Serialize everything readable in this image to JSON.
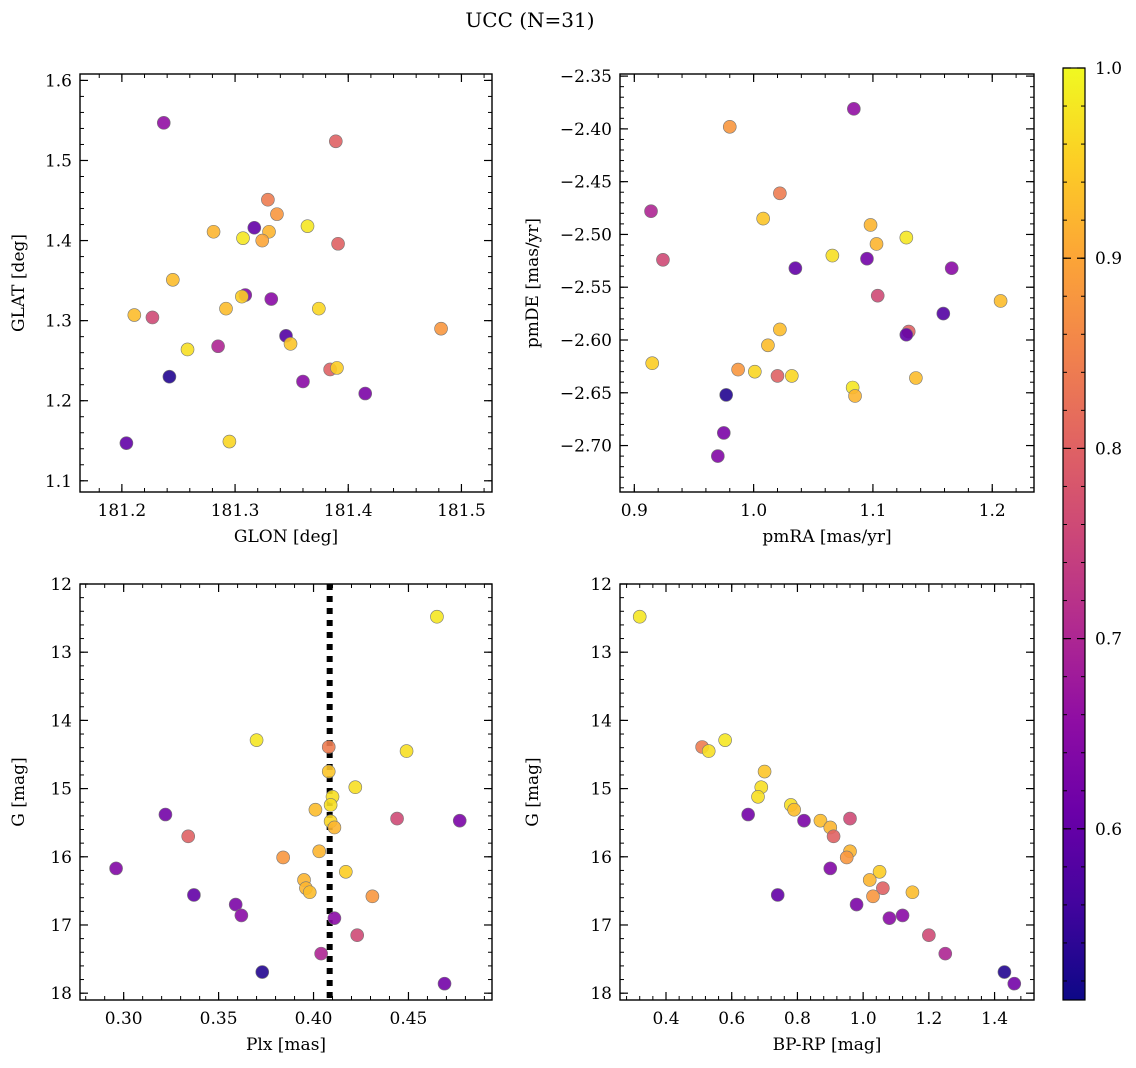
{
  "figure": {
    "title": "UCC (N=31)"
  },
  "colorbar": {
    "min": 0.51,
    "max": 1.0,
    "ticks": [
      0.6,
      0.7,
      0.8,
      0.9,
      1.0
    ],
    "tick_labels": [
      "0.6",
      "0.7",
      "0.8",
      "0.9",
      "1.0"
    ],
    "colormap": "plasma"
  },
  "chart_data": [
    {
      "type": "scatter",
      "id": "glon-glat",
      "xlabel": "GLON [deg]",
      "ylabel": "GLAT [deg]",
      "xlim": [
        181.163,
        181.527
      ],
      "ylim": [
        1.086,
        1.608
      ],
      "xticks": [
        181.2,
        181.3,
        181.4,
        181.5
      ],
      "xtick_labels": [
        "181.2",
        "181.3",
        "181.4",
        "181.5"
      ],
      "yticks": [
        1.1,
        1.2,
        1.3,
        1.4,
        1.5,
        1.6
      ],
      "ytick_labels": [
        "1.1",
        "1.2",
        "1.3",
        "1.4",
        "1.5",
        "1.6"
      ],
      "y_inverted": false,
      "points": [
        {
          "x": 181.237,
          "y": 1.547,
          "c": 0.66
        },
        {
          "x": 181.389,
          "y": 1.524,
          "c": 0.8
        },
        {
          "x": 181.329,
          "y": 1.451,
          "c": 0.84
        },
        {
          "x": 181.337,
          "y": 1.433,
          "c": 0.88
        },
        {
          "x": 181.317,
          "y": 1.416,
          "c": 0.6
        },
        {
          "x": 181.364,
          "y": 1.418,
          "c": 0.98
        },
        {
          "x": 181.281,
          "y": 1.411,
          "c": 0.92
        },
        {
          "x": 181.33,
          "y": 1.411,
          "c": 0.92
        },
        {
          "x": 181.307,
          "y": 1.403,
          "c": 0.98
        },
        {
          "x": 181.324,
          "y": 1.4,
          "c": 0.9
        },
        {
          "x": 181.391,
          "y": 1.396,
          "c": 0.8
        },
        {
          "x": 181.245,
          "y": 1.351,
          "c": 0.93
        },
        {
          "x": 181.309,
          "y": 1.332,
          "c": 0.64
        },
        {
          "x": 181.306,
          "y": 1.33,
          "c": 0.95
        },
        {
          "x": 181.332,
          "y": 1.327,
          "c": 0.65
        },
        {
          "x": 181.292,
          "y": 1.315,
          "c": 0.93
        },
        {
          "x": 181.374,
          "y": 1.315,
          "c": 0.96
        },
        {
          "x": 181.211,
          "y": 1.307,
          "c": 0.93
        },
        {
          "x": 181.227,
          "y": 1.304,
          "c": 0.76
        },
        {
          "x": 181.482,
          "y": 1.29,
          "c": 0.88
        },
        {
          "x": 181.345,
          "y": 1.281,
          "c": 0.58
        },
        {
          "x": 181.349,
          "y": 1.271,
          "c": 0.94
        },
        {
          "x": 181.285,
          "y": 1.268,
          "c": 0.7
        },
        {
          "x": 181.258,
          "y": 1.264,
          "c": 0.97
        },
        {
          "x": 181.384,
          "y": 1.239,
          "c": 0.8
        },
        {
          "x": 181.39,
          "y": 1.241,
          "c": 0.95
        },
        {
          "x": 181.242,
          "y": 1.23,
          "c": 0.53
        },
        {
          "x": 181.36,
          "y": 1.224,
          "c": 0.65
        },
        {
          "x": 181.415,
          "y": 1.209,
          "c": 0.63
        },
        {
          "x": 181.295,
          "y": 1.149,
          "c": 0.96
        },
        {
          "x": 181.204,
          "y": 1.147,
          "c": 0.6
        }
      ]
    },
    {
      "type": "scatter",
      "id": "pmra-pmde",
      "xlabel": "pmRA [mas/yr]",
      "ylabel": "pmDE [mas/yr]",
      "xlim": [
        0.888,
        1.235
      ],
      "ylim": [
        -2.744,
        -2.348
      ],
      "xticks": [
        0.9,
        1.0,
        1.1,
        1.2
      ],
      "xtick_labels": [
        "0.9",
        "1.0",
        "1.1",
        "1.2"
      ],
      "yticks": [
        -2.7,
        -2.65,
        -2.6,
        -2.55,
        -2.5,
        -2.45,
        -2.4,
        -2.35
      ],
      "ytick_labels": [
        "−2.70",
        "−2.65",
        "−2.60",
        "−2.55",
        "−2.50",
        "−2.45",
        "−2.40",
        "−2.35"
      ],
      "y_inverted": false,
      "points": [
        {
          "x": 1.084,
          "y": -2.381,
          "c": 0.66
        },
        {
          "x": 0.98,
          "y": -2.398,
          "c": 0.88
        },
        {
          "x": 1.022,
          "y": -2.461,
          "c": 0.84
        },
        {
          "x": 0.914,
          "y": -2.478,
          "c": 0.7
        },
        {
          "x": 1.008,
          "y": -2.485,
          "c": 0.94
        },
        {
          "x": 1.098,
          "y": -2.491,
          "c": 0.92
        },
        {
          "x": 1.128,
          "y": -2.503,
          "c": 0.98
        },
        {
          "x": 1.103,
          "y": -2.509,
          "c": 0.92
        },
        {
          "x": 1.066,
          "y": -2.52,
          "c": 0.97
        },
        {
          "x": 0.924,
          "y": -2.524,
          "c": 0.76
        },
        {
          "x": 1.095,
          "y": -2.523,
          "c": 0.62
        },
        {
          "x": 1.035,
          "y": -2.532,
          "c": 0.6
        },
        {
          "x": 1.166,
          "y": -2.532,
          "c": 0.65
        },
        {
          "x": 1.104,
          "y": -2.558,
          "c": 0.76
        },
        {
          "x": 1.207,
          "y": -2.563,
          "c": 0.93
        },
        {
          "x": 1.159,
          "y": -2.575,
          "c": 0.58
        },
        {
          "x": 1.022,
          "y": -2.59,
          "c": 0.93
        },
        {
          "x": 1.13,
          "y": -2.592,
          "c": 0.8
        },
        {
          "x": 1.128,
          "y": -2.595,
          "c": 0.6
        },
        {
          "x": 1.012,
          "y": -2.605,
          "c": 0.93
        },
        {
          "x": 0.915,
          "y": -2.622,
          "c": 0.95
        },
        {
          "x": 0.987,
          "y": -2.628,
          "c": 0.88
        },
        {
          "x": 1.001,
          "y": -2.63,
          "c": 0.96
        },
        {
          "x": 1.02,
          "y": -2.634,
          "c": 0.8
        },
        {
          "x": 1.032,
          "y": -2.634,
          "c": 0.96
        },
        {
          "x": 1.136,
          "y": -2.636,
          "c": 0.93
        },
        {
          "x": 1.083,
          "y": -2.645,
          "c": 0.98
        },
        {
          "x": 0.977,
          "y": -2.652,
          "c": 0.53
        },
        {
          "x": 1.085,
          "y": -2.653,
          "c": 0.92
        },
        {
          "x": 0.975,
          "y": -2.688,
          "c": 0.63
        },
        {
          "x": 0.97,
          "y": -2.71,
          "c": 0.64
        }
      ]
    },
    {
      "type": "scatter",
      "id": "plx-g",
      "xlabel": "Plx [mas]",
      "ylabel": "G [mag]",
      "xlim": [
        0.277,
        0.494
      ],
      "ylim": [
        12.0,
        18.1
      ],
      "xticks": [
        0.3,
        0.35,
        0.4,
        0.45
      ],
      "xtick_labels": [
        "0.30",
        "0.35",
        "0.40",
        "0.45"
      ],
      "yticks": [
        12,
        13,
        14,
        15,
        16,
        17,
        18
      ],
      "ytick_labels": [
        "12",
        "13",
        "14",
        "15",
        "16",
        "17",
        "18"
      ],
      "y_inverted": true,
      "vline": {
        "x": 0.4085,
        "style": "dotted"
      },
      "points": [
        {
          "x": 0.465,
          "y": 12.48,
          "c": 0.98
        },
        {
          "x": 0.37,
          "y": 14.29,
          "c": 0.98
        },
        {
          "x": 0.408,
          "y": 14.39,
          "c": 0.84
        },
        {
          "x": 0.449,
          "y": 14.45,
          "c": 0.97
        },
        {
          "x": 0.408,
          "y": 14.75,
          "c": 0.94
        },
        {
          "x": 0.422,
          "y": 14.98,
          "c": 0.97
        },
        {
          "x": 0.41,
          "y": 15.12,
          "c": 0.97
        },
        {
          "x": 0.409,
          "y": 15.24,
          "c": 0.97
        },
        {
          "x": 0.401,
          "y": 15.31,
          "c": 0.93
        },
        {
          "x": 0.322,
          "y": 15.38,
          "c": 0.62
        },
        {
          "x": 0.444,
          "y": 15.44,
          "c": 0.76
        },
        {
          "x": 0.477,
          "y": 15.47,
          "c": 0.63
        },
        {
          "x": 0.409,
          "y": 15.48,
          "c": 0.96
        },
        {
          "x": 0.411,
          "y": 15.57,
          "c": 0.92
        },
        {
          "x": 0.334,
          "y": 15.7,
          "c": 0.8
        },
        {
          "x": 0.403,
          "y": 15.92,
          "c": 0.92
        },
        {
          "x": 0.384,
          "y": 16.01,
          "c": 0.88
        },
        {
          "x": 0.296,
          "y": 16.17,
          "c": 0.64
        },
        {
          "x": 0.417,
          "y": 16.22,
          "c": 0.95
        },
        {
          "x": 0.395,
          "y": 16.34,
          "c": 0.92
        },
        {
          "x": 0.396,
          "y": 16.46,
          "c": 0.92
        },
        {
          "x": 0.398,
          "y": 16.52,
          "c": 0.93
        },
        {
          "x": 0.337,
          "y": 16.56,
          "c": 0.6
        },
        {
          "x": 0.431,
          "y": 16.58,
          "c": 0.88
        },
        {
          "x": 0.359,
          "y": 16.7,
          "c": 0.63
        },
        {
          "x": 0.362,
          "y": 16.86,
          "c": 0.65
        },
        {
          "x": 0.411,
          "y": 16.9,
          "c": 0.65
        },
        {
          "x": 0.423,
          "y": 17.15,
          "c": 0.76
        },
        {
          "x": 0.404,
          "y": 17.42,
          "c": 0.7
        },
        {
          "x": 0.373,
          "y": 17.69,
          "c": 0.53
        },
        {
          "x": 0.469,
          "y": 17.86,
          "c": 0.62
        }
      ]
    },
    {
      "type": "scatter",
      "id": "bprp-g",
      "xlabel": "BP-RP [mag]",
      "ylabel": "G [mag]",
      "xlim": [
        0.26,
        1.52
      ],
      "ylim": [
        12.0,
        18.1
      ],
      "xticks": [
        0.4,
        0.6,
        0.8,
        1.0,
        1.2,
        1.4
      ],
      "xtick_labels": [
        "0.4",
        "0.6",
        "0.8",
        "1.0",
        "1.2",
        "1.4"
      ],
      "yticks": [
        12,
        13,
        14,
        15,
        16,
        17,
        18
      ],
      "ytick_labels": [
        "12",
        "13",
        "14",
        "15",
        "16",
        "17",
        "18"
      ],
      "y_inverted": true,
      "points": [
        {
          "x": 0.32,
          "y": 12.48,
          "c": 0.98
        },
        {
          "x": 0.58,
          "y": 14.29,
          "c": 0.98
        },
        {
          "x": 0.51,
          "y": 14.39,
          "c": 0.84
        },
        {
          "x": 0.53,
          "y": 14.45,
          "c": 0.97
        },
        {
          "x": 0.7,
          "y": 14.75,
          "c": 0.94
        },
        {
          "x": 0.69,
          "y": 14.98,
          "c": 0.97
        },
        {
          "x": 0.68,
          "y": 15.12,
          "c": 0.97
        },
        {
          "x": 0.78,
          "y": 15.24,
          "c": 0.97
        },
        {
          "x": 0.79,
          "y": 15.31,
          "c": 0.93
        },
        {
          "x": 0.65,
          "y": 15.38,
          "c": 0.62
        },
        {
          "x": 0.96,
          "y": 15.44,
          "c": 0.76
        },
        {
          "x": 0.87,
          "y": 15.47,
          "c": 0.93
        },
        {
          "x": 0.82,
          "y": 15.47,
          "c": 0.63
        },
        {
          "x": 0.9,
          "y": 15.57,
          "c": 0.92
        },
        {
          "x": 0.91,
          "y": 15.7,
          "c": 0.8
        },
        {
          "x": 0.96,
          "y": 15.92,
          "c": 0.92
        },
        {
          "x": 0.95,
          "y": 16.01,
          "c": 0.88
        },
        {
          "x": 0.9,
          "y": 16.17,
          "c": 0.64
        },
        {
          "x": 1.05,
          "y": 16.22,
          "c": 0.95
        },
        {
          "x": 1.02,
          "y": 16.34,
          "c": 0.92
        },
        {
          "x": 1.06,
          "y": 16.46,
          "c": 0.8
        },
        {
          "x": 1.15,
          "y": 16.52,
          "c": 0.93
        },
        {
          "x": 0.74,
          "y": 16.56,
          "c": 0.6
        },
        {
          "x": 1.03,
          "y": 16.58,
          "c": 0.88
        },
        {
          "x": 0.98,
          "y": 16.7,
          "c": 0.63
        },
        {
          "x": 1.12,
          "y": 16.86,
          "c": 0.65
        },
        {
          "x": 1.08,
          "y": 16.9,
          "c": 0.65
        },
        {
          "x": 1.2,
          "y": 17.15,
          "c": 0.76
        },
        {
          "x": 1.25,
          "y": 17.42,
          "c": 0.7
        },
        {
          "x": 1.43,
          "y": 17.69,
          "c": 0.53
        },
        {
          "x": 1.46,
          "y": 17.86,
          "c": 0.62
        }
      ]
    }
  ]
}
